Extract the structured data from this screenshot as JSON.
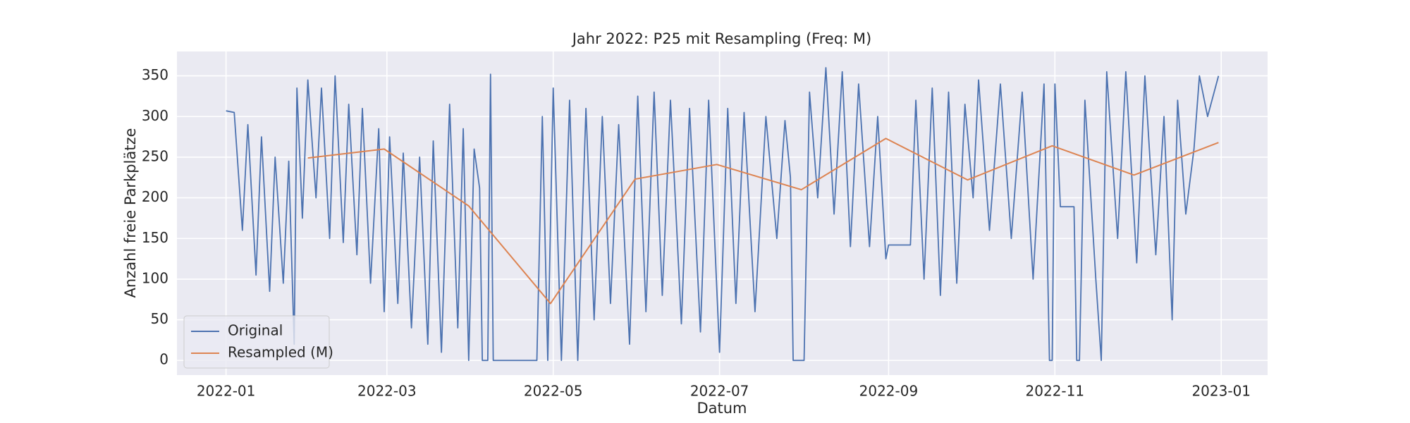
{
  "chart_data": {
    "type": "line",
    "title": "Jahr 2022: P25 mit Resampling (Freq: M)",
    "x_label": "Datum",
    "y_label": "Anzahl freie Parkplätze",
    "xlim": [
      "2021-12-14",
      "2023-01-18"
    ],
    "ylim": [
      -18,
      380
    ],
    "xticks": [
      {
        "value": "2022-01-01",
        "label": "2022-01"
      },
      {
        "value": "2022-03-01",
        "label": "2022-03"
      },
      {
        "value": "2022-05-01",
        "label": "2022-05"
      },
      {
        "value": "2022-07-01",
        "label": "2022-07"
      },
      {
        "value": "2022-09-01",
        "label": "2022-09"
      },
      {
        "value": "2022-11-01",
        "label": "2022-11"
      },
      {
        "value": "2023-01-01",
        "label": "2023-01"
      }
    ],
    "yticks": [
      0,
      50,
      100,
      150,
      200,
      250,
      300,
      350
    ],
    "grid": true,
    "legend_position": "lower left",
    "series": [
      {
        "name": "Original",
        "color": "#4c72b0",
        "x": [
          "2022-01-01",
          "2022-01-04",
          "2022-01-07",
          "2022-01-09",
          "2022-01-12",
          "2022-01-14",
          "2022-01-17",
          "2022-01-19",
          "2022-01-22",
          "2022-01-24",
          "2022-01-26",
          "2022-01-27",
          "2022-01-29",
          "2022-01-31",
          "2022-02-03",
          "2022-02-05",
          "2022-02-08",
          "2022-02-10",
          "2022-02-13",
          "2022-02-15",
          "2022-02-18",
          "2022-02-20",
          "2022-02-23",
          "2022-02-26",
          "2022-02-28",
          "2022-03-02",
          "2022-03-05",
          "2022-03-07",
          "2022-03-10",
          "2022-03-13",
          "2022-03-16",
          "2022-03-18",
          "2022-03-21",
          "2022-03-24",
          "2022-03-27",
          "2022-03-29",
          "2022-03-31",
          "2022-04-02",
          "2022-04-04",
          "2022-04-05",
          "2022-04-07",
          "2022-04-08",
          "2022-04-09",
          "2022-04-25",
          "2022-04-27",
          "2022-04-29",
          "2022-05-01",
          "2022-05-04",
          "2022-05-07",
          "2022-05-10",
          "2022-05-13",
          "2022-05-16",
          "2022-05-19",
          "2022-05-22",
          "2022-05-25",
          "2022-05-29",
          "2022-06-01",
          "2022-06-04",
          "2022-06-07",
          "2022-06-10",
          "2022-06-13",
          "2022-06-17",
          "2022-06-20",
          "2022-06-24",
          "2022-06-27",
          "2022-07-01",
          "2022-07-04",
          "2022-07-07",
          "2022-07-10",
          "2022-07-14",
          "2022-07-18",
          "2022-07-22",
          "2022-07-25",
          "2022-07-27",
          "2022-07-28",
          "2022-08-01",
          "2022-08-03",
          "2022-08-06",
          "2022-08-09",
          "2022-08-12",
          "2022-08-15",
          "2022-08-18",
          "2022-08-21",
          "2022-08-25",
          "2022-08-28",
          "2022-08-31",
          "2022-09-01",
          "2022-09-09",
          "2022-09-11",
          "2022-09-14",
          "2022-09-17",
          "2022-09-20",
          "2022-09-23",
          "2022-09-26",
          "2022-09-29",
          "2022-10-02",
          "2022-10-04",
          "2022-10-08",
          "2022-10-12",
          "2022-10-16",
          "2022-10-20",
          "2022-10-24",
          "2022-10-28",
          "2022-10-30",
          "2022-10-31",
          "2022-11-01",
          "2022-11-03",
          "2022-11-08",
          "2022-11-09",
          "2022-11-10",
          "2022-11-12",
          "2022-11-16",
          "2022-11-18",
          "2022-11-20",
          "2022-11-24",
          "2022-11-27",
          "2022-12-01",
          "2022-12-04",
          "2022-12-08",
          "2022-12-11",
          "2022-12-14",
          "2022-12-16",
          "2022-12-19",
          "2022-12-22",
          "2022-12-24",
          "2022-12-27",
          "2022-12-31"
        ],
        "values": [
          307,
          305,
          160,
          290,
          105,
          275,
          85,
          250,
          95,
          245,
          20,
          335,
          175,
          345,
          200,
          335,
          150,
          350,
          145,
          315,
          130,
          310,
          95,
          285,
          60,
          275,
          70,
          255,
          40,
          250,
          20,
          270,
          10,
          315,
          40,
          285,
          0,
          260,
          212,
          0,
          0,
          352,
          0,
          0,
          300,
          0,
          335,
          0,
          320,
          0,
          310,
          50,
          300,
          70,
          290,
          20,
          325,
          60,
          330,
          80,
          320,
          45,
          310,
          35,
          320,
          10,
          310,
          70,
          305,
          60,
          300,
          150,
          295,
          225,
          0,
          0,
          330,
          200,
          360,
          180,
          355,
          140,
          340,
          140,
          300,
          125,
          142,
          142,
          320,
          100,
          335,
          80,
          330,
          95,
          315,
          200,
          345,
          160,
          340,
          150,
          330,
          100,
          340,
          0,
          0,
          340,
          189,
          189,
          0,
          0,
          320,
          100,
          0,
          355,
          150,
          355,
          120,
          350,
          130,
          300,
          50,
          320,
          180,
          260,
          350,
          300,
          350
        ]
      },
      {
        "name": "Resampled (M)",
        "color": "#dd8452",
        "x": [
          "2022-01-31",
          "2022-02-28",
          "2022-03-31",
          "2022-04-30",
          "2022-05-31",
          "2022-06-30",
          "2022-07-31",
          "2022-08-31",
          "2022-09-30",
          "2022-10-31",
          "2022-11-30",
          "2022-12-31"
        ],
        "values": [
          249,
          260,
          190,
          70,
          223,
          241,
          210,
          273,
          222,
          264,
          228,
          268
        ]
      }
    ]
  }
}
